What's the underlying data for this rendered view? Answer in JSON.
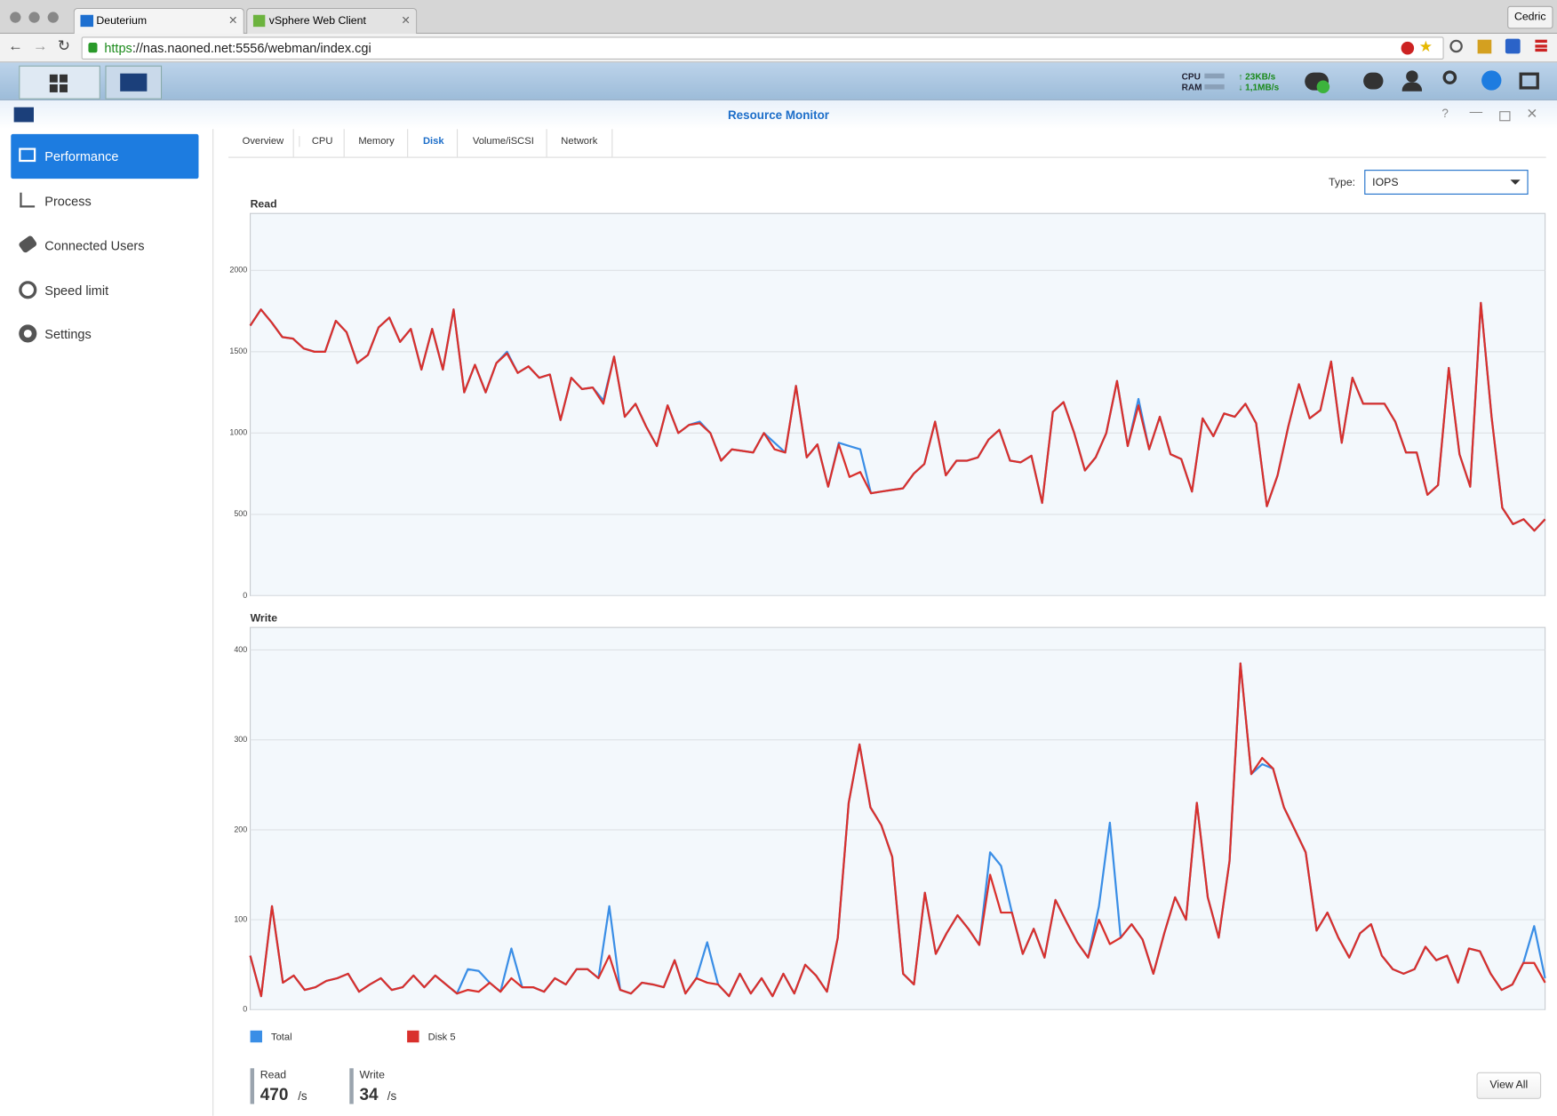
{
  "browser": {
    "tabs": [
      "Deuterium",
      "vSphere Web Client"
    ],
    "user": "Cedric",
    "url_scheme": "https",
    "url_rest": "://nas.naoned.net:5556/webman/index.cgi"
  },
  "taskbar": {
    "cpu": "CPU",
    "ram": "RAM",
    "upload": "23KB/s",
    "download": "1,1MB/s"
  },
  "window": {
    "title": "Resource Monitor"
  },
  "sidebar": [
    "Performance",
    "Process",
    "Connected Users",
    "Speed limit",
    "Settings"
  ],
  "tabs": [
    "Overview",
    "CPU",
    "Memory",
    "Disk",
    "Volume/iSCSI",
    "Network"
  ],
  "type_selector": {
    "label": "Type:",
    "value": "IOPS"
  },
  "chart_data": [
    {
      "type": "line",
      "title": "Read",
      "ylim": [
        0,
        2350
      ],
      "yticks": [
        0,
        500,
        1000,
        1500,
        2000
      ],
      "grid": true,
      "series": [
        {
          "name": "Total",
          "color": "#3a8ee6",
          "values": [
            1660,
            1760,
            1680,
            1590,
            1580,
            1520,
            1500,
            1500,
            1690,
            1620,
            1430,
            1480,
            1650,
            1710,
            1560,
            1640,
            1390,
            1640,
            1390,
            1760,
            1250,
            1420,
            1250,
            1430,
            1500,
            1370,
            1410,
            1340,
            1360,
            1080,
            1340,
            1270,
            1280,
            1200,
            1470,
            1100,
            1180,
            1040,
            920,
            1170,
            1000,
            1050,
            1070,
            1000,
            830,
            900,
            890,
            880,
            1000,
            940,
            880,
            1290,
            850,
            930,
            670,
            940,
            920,
            900,
            630,
            640,
            650,
            660,
            750,
            810,
            1070,
            740,
            830,
            830,
            850,
            960,
            1020,
            830,
            820,
            860,
            570,
            1130,
            1190,
            1000,
            770,
            850,
            1000,
            1320,
            920,
            1210,
            900,
            1100,
            870,
            840,
            640,
            1090,
            980,
            1120,
            1100,
            1180,
            1060,
            550,
            740,
            1040,
            1300,
            1090,
            1140,
            1440,
            940,
            1340,
            1180,
            1180,
            1180,
            1070,
            880,
            880,
            620,
            680,
            1400,
            870,
            670,
            1800,
            1100,
            540,
            440,
            470,
            400,
            470
          ]
        },
        {
          "name": "Disk 5",
          "color": "#d9302c",
          "values": [
            1660,
            1760,
            1680,
            1590,
            1580,
            1520,
            1500,
            1500,
            1690,
            1620,
            1430,
            1480,
            1650,
            1710,
            1560,
            1640,
            1390,
            1640,
            1390,
            1760,
            1250,
            1420,
            1250,
            1430,
            1490,
            1370,
            1410,
            1340,
            1360,
            1080,
            1340,
            1270,
            1280,
            1180,
            1470,
            1100,
            1180,
            1040,
            920,
            1170,
            1000,
            1050,
            1060,
            1000,
            830,
            900,
            890,
            880,
            1000,
            900,
            880,
            1290,
            850,
            930,
            670,
            930,
            730,
            760,
            630,
            640,
            650,
            660,
            750,
            810,
            1070,
            740,
            830,
            830,
            850,
            960,
            1020,
            830,
            820,
            860,
            570,
            1130,
            1190,
            1000,
            770,
            850,
            1000,
            1320,
            920,
            1170,
            900,
            1100,
            870,
            840,
            640,
            1090,
            980,
            1120,
            1100,
            1180,
            1060,
            550,
            740,
            1040,
            1300,
            1090,
            1140,
            1440,
            940,
            1340,
            1180,
            1180,
            1180,
            1070,
            880,
            880,
            620,
            680,
            1400,
            870,
            670,
            1800,
            1100,
            540,
            440,
            470,
            400,
            470
          ]
        }
      ]
    },
    {
      "type": "line",
      "title": "Write",
      "ylim": [
        0,
        425
      ],
      "yticks": [
        0,
        100,
        200,
        300,
        400
      ],
      "grid": true,
      "series": [
        {
          "name": "Total",
          "color": "#3a8ee6",
          "values": [
            60,
            15,
            115,
            30,
            38,
            22,
            25,
            32,
            35,
            40,
            20,
            28,
            35,
            22,
            25,
            38,
            25,
            38,
            28,
            18,
            45,
            43,
            30,
            20,
            68,
            25,
            25,
            20,
            35,
            28,
            45,
            45,
            35,
            115,
            22,
            18,
            30,
            28,
            25,
            55,
            18,
            35,
            75,
            28,
            15,
            40,
            18,
            35,
            15,
            40,
            18,
            50,
            38,
            20,
            80,
            230,
            295,
            225,
            205,
            170,
            40,
            28,
            130,
            62,
            85,
            105,
            90,
            72,
            175,
            160,
            108,
            62,
            90,
            58,
            122,
            98,
            75,
            58,
            115,
            208,
            80,
            95,
            78,
            40,
            85,
            125,
            100,
            230,
            125,
            80,
            165,
            385,
            262,
            273,
            268,
            225,
            200,
            175,
            88,
            108,
            80,
            58,
            85,
            95,
            60,
            45,
            40,
            45,
            70,
            55,
            60,
            30,
            68,
            65,
            40,
            22,
            28,
            52,
            93,
            35
          ]
        },
        {
          "name": "Disk 5",
          "color": "#d9302c",
          "values": [
            60,
            15,
            115,
            30,
            38,
            22,
            25,
            32,
            35,
            40,
            20,
            28,
            35,
            22,
            25,
            38,
            25,
            38,
            28,
            18,
            22,
            20,
            30,
            20,
            35,
            25,
            25,
            20,
            35,
            28,
            45,
            45,
            35,
            60,
            22,
            18,
            30,
            28,
            25,
            55,
            18,
            35,
            30,
            28,
            15,
            40,
            18,
            35,
            15,
            40,
            18,
            50,
            38,
            20,
            80,
            230,
            295,
            225,
            205,
            170,
            40,
            28,
            130,
            62,
            85,
            105,
            90,
            72,
            150,
            108,
            108,
            62,
            90,
            58,
            122,
            98,
            75,
            58,
            100,
            73,
            80,
            95,
            78,
            40,
            85,
            125,
            100,
            230,
            125,
            80,
            165,
            385,
            262,
            280,
            268,
            225,
            200,
            175,
            88,
            108,
            80,
            58,
            85,
            95,
            60,
            45,
            40,
            45,
            70,
            55,
            60,
            30,
            68,
            65,
            40,
            22,
            28,
            52,
            52,
            30
          ]
        }
      ]
    }
  ],
  "summary": [
    {
      "label": "Read",
      "value": 470,
      "unit": "/s"
    },
    {
      "label": "Write",
      "value": 34,
      "unit": "/s"
    }
  ],
  "view_all": "View All"
}
